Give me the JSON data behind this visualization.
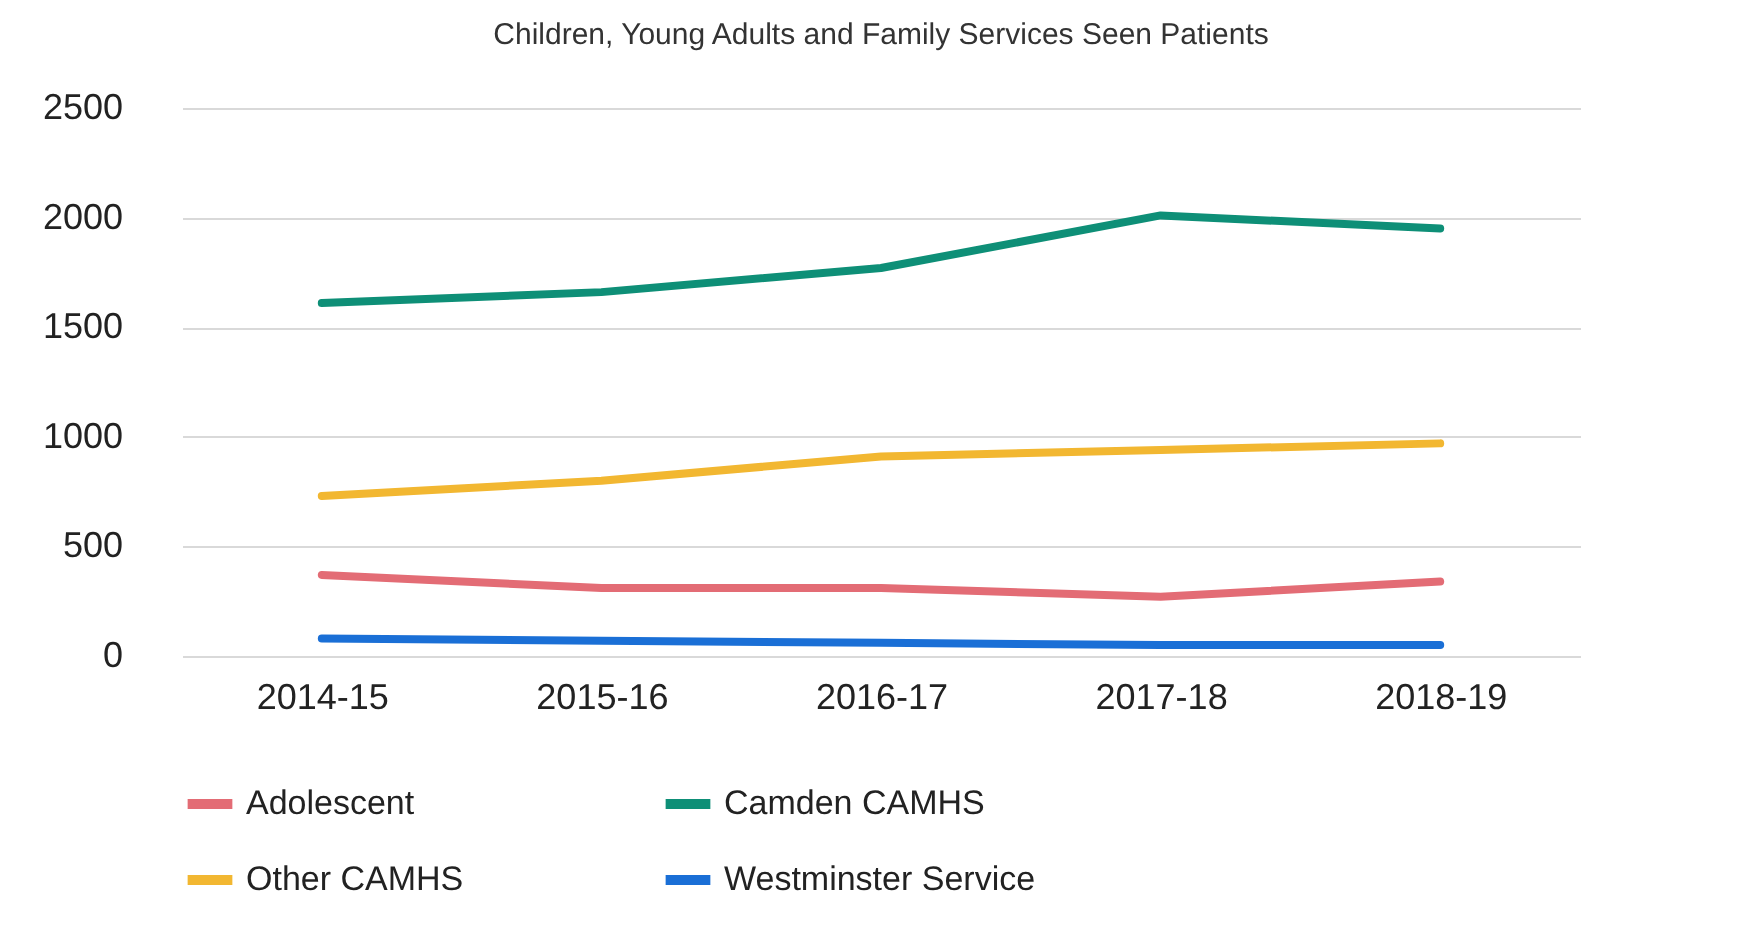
{
  "chart_data": {
    "type": "line",
    "title": "Children, Young Adults and Family Services Seen Patients",
    "categories": [
      "2014-15",
      "2015-16",
      "2016-17",
      "2017-18",
      "2018-19"
    ],
    "series": [
      {
        "name": "Adolescent",
        "color": "#e36c75",
        "values": [
          370,
          310,
          310,
          270,
          340
        ]
      },
      {
        "name": "Camden CAMHS",
        "color": "#0e8f77",
        "values": [
          1610,
          1660,
          1770,
          2010,
          1950
        ]
      },
      {
        "name": "Other CAMHS",
        "color": "#f2b731",
        "values": [
          730,
          800,
          910,
          940,
          970
        ]
      },
      {
        "name": "Westminster Service",
        "color": "#1a6fd6",
        "values": [
          80,
          70,
          60,
          50,
          50
        ]
      }
    ],
    "ylim": [
      0,
      2500
    ],
    "yticks": [
      0,
      500,
      1000,
      1500,
      2000,
      2500
    ],
    "grid": "y",
    "legend": "bottom",
    "marker": "none",
    "line_style": "solid"
  }
}
